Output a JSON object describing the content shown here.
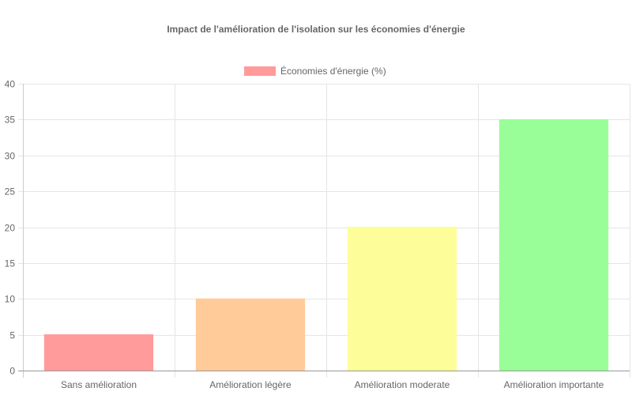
{
  "chart_data": {
    "type": "bar",
    "title": "Impact de l'amélioration de l'isolation sur les économies d'énergie",
    "categories": [
      "Sans amélioration",
      "Amélioration légère",
      "Amélioration moderate",
      "Amélioration importante"
    ],
    "series": [
      {
        "name": "Économies d'énergie (%)",
        "values": [
          5,
          10,
          20,
          35
        ],
        "colors": [
          "#ff9b9b",
          "#ffcb99",
          "#fdfd99",
          "#99fe98"
        ],
        "legend_color": "#ff9b9b"
      }
    ],
    "yticks": [
      0,
      5,
      10,
      15,
      20,
      25,
      30,
      35,
      40
    ],
    "ylim": [
      0,
      40
    ],
    "grid": true,
    "legend_position": "top-center"
  }
}
